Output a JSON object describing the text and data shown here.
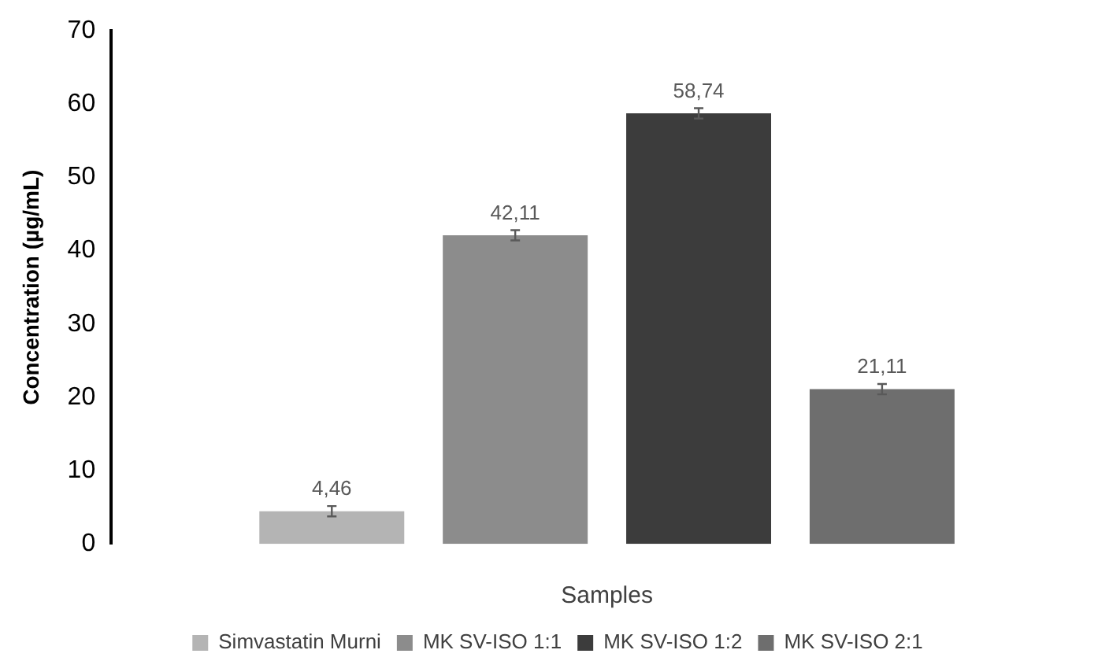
{
  "chart_data": {
    "type": "bar",
    "xlabel": "Samples",
    "ylabel": "Concentration (µg/mL)",
    "categories": [
      null
    ],
    "series": [
      {
        "name": "Simvastatin Murni",
        "color": "#b4b4b4",
        "values": [
          4.46
        ],
        "errors": [
          0.7
        ],
        "value_labels": [
          "4,46"
        ]
      },
      {
        "name": "MK SV-ISO 1:1",
        "color": "#8c8c8c",
        "values": [
          42.11
        ],
        "errors": [
          0.7
        ],
        "value_labels": [
          "42,11"
        ]
      },
      {
        "name": "MK SV-ISO 1:2",
        "color": "#3c3c3c",
        "values": [
          58.74
        ],
        "errors": [
          0.7
        ],
        "value_labels": [
          "58,74"
        ]
      },
      {
        "name": "MK SV-ISO 2:1",
        "color": "#6e6e6e",
        "values": [
          21.11
        ],
        "errors": [
          0.7
        ],
        "value_labels": [
          "21,11"
        ]
      }
    ],
    "ylim": [
      0,
      70
    ],
    "yticks": [
      0,
      10,
      20,
      30,
      40,
      50,
      60,
      70
    ],
    "grid": false,
    "legend": "bottom"
  }
}
